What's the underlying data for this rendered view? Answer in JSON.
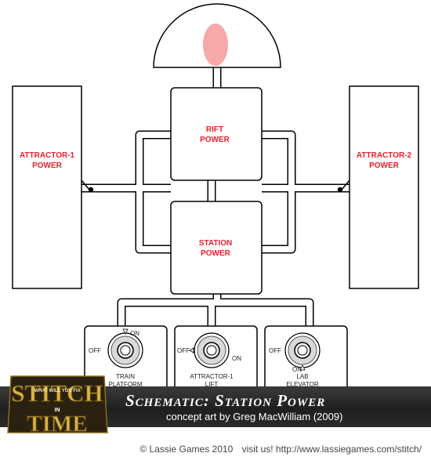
{
  "labels": {
    "rift_power": [
      "RIFT",
      "POWER"
    ],
    "station_power": [
      "STATION",
      "POWER"
    ],
    "attractor1_power": [
      "ATTRACTOR-1",
      "POWER"
    ],
    "attractor2_power": [
      "ATTRACTOR-2",
      "POWER"
    ]
  },
  "switches": [
    {
      "name": "train-platform",
      "off": "OFF",
      "on": "ON",
      "caption": [
        "TRAIN",
        "PLATFORM"
      ]
    },
    {
      "name": "attractor1-lift",
      "off": "OFF",
      "on": "ON",
      "caption": [
        "ATTRACTOR-1",
        "LIFT"
      ]
    },
    {
      "name": "lab-elevator",
      "off": "OFF",
      "on": "ON",
      "caption": [
        "LAB",
        "ELEVATOR"
      ]
    }
  ],
  "banner": {
    "title": "Schematic: Station Power",
    "subtitle": "concept art by Greg MacWilliam (2009)"
  },
  "logo": {
    "wordmark": [
      "STITCH",
      "IN",
      "TIME"
    ],
    "tagline": "WHAT WILL YOU FIX"
  },
  "footer": {
    "copyright": "© Lassie Games 2010",
    "visit": "visit us! http://www.lassiegames.com/stitch/"
  },
  "colors": {
    "label_red": "#e8202a",
    "orb_pink": "#f7a8a8",
    "banner_bg": "#2b2b2b",
    "logo_gold": "#d8b441"
  }
}
